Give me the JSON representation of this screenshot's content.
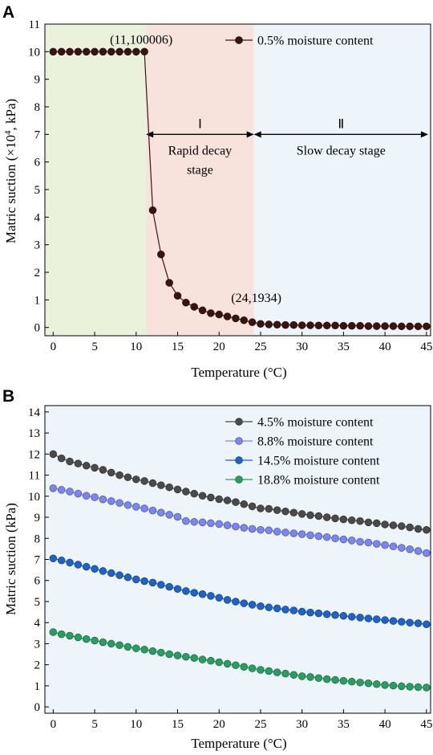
{
  "chart_data": [
    {
      "type": "line",
      "panel_label": "A",
      "xlabel": "Temperature (°C)",
      "ylabel_pre": "Matric suction (×10",
      "ylabel_sup": "4",
      "ylabel_post": ", kPa)",
      "xlim": [
        -1,
        45.5
      ],
      "ylim": [
        -0.3,
        11
      ],
      "xticks": [
        0,
        5,
        10,
        15,
        20,
        25,
        30,
        35,
        40,
        45
      ],
      "yticks": [
        0,
        1,
        2,
        3,
        4,
        5,
        6,
        7,
        8,
        9,
        10,
        11
      ],
      "grid": false,
      "legend_position": "top-right",
      "regions": [
        {
          "x0": -1,
          "x1": 11.2,
          "color": "#eaf2dc"
        },
        {
          "x0": 11.2,
          "x1": 24.2,
          "color": "#f7e3dc"
        },
        {
          "x0": 24.2,
          "x1": 45.5,
          "color": "#eef5fa"
        }
      ],
      "stage_arrows": [
        {
          "x0": 11.2,
          "x1": 24.2,
          "y": 7.0,
          "roman": "Ⅰ",
          "label_line1": "Rapid decay",
          "label_line2": "stage"
        },
        {
          "x0": 24.2,
          "x1": 45.2,
          "y": 7.0,
          "roman": "Ⅱ",
          "label_line1": "Slow decay stage",
          "label_line2": ""
        }
      ],
      "annotations": [
        {
          "text": "(11,100006)",
          "x": 11,
          "y": 10
        },
        {
          "text": "(24,1934)",
          "x": 24,
          "y": 0.19
        }
      ],
      "series": [
        {
          "name": "0.5% moisture content",
          "color": "#3a1410",
          "x": [
            0,
            1,
            2,
            3,
            4,
            5,
            6,
            7,
            8,
            9,
            10,
            11,
            12,
            13,
            14,
            15,
            16,
            17,
            18,
            19,
            20,
            21,
            22,
            23,
            24,
            25,
            26,
            27,
            28,
            29,
            30,
            31,
            32,
            33,
            34,
            35,
            36,
            37,
            38,
            39,
            40,
            41,
            42,
            43,
            44,
            45
          ],
          "y": [
            10,
            10,
            10,
            10,
            10,
            10,
            10,
            10,
            10,
            10,
            10,
            10.0006,
            4.25,
            2.65,
            1.62,
            1.15,
            0.9,
            0.75,
            0.62,
            0.52,
            0.47,
            0.4,
            0.33,
            0.26,
            0.19,
            0.13,
            0.11,
            0.1,
            0.09,
            0.09,
            0.08,
            0.08,
            0.07,
            0.07,
            0.07,
            0.06,
            0.06,
            0.06,
            0.05,
            0.05,
            0.05,
            0.05,
            0.04,
            0.04,
            0.04,
            0.04
          ]
        }
      ]
    },
    {
      "type": "line",
      "panel_label": "B",
      "xlabel": "Temperature (°C)",
      "ylabel": "Matric suction (kPa)",
      "xlim": [
        -1,
        45.5
      ],
      "ylim": [
        -0.3,
        14.3
      ],
      "xticks": [
        0,
        5,
        10,
        15,
        20,
        25,
        30,
        35,
        40,
        45
      ],
      "yticks": [
        0,
        1,
        2,
        3,
        4,
        5,
        6,
        7,
        8,
        9,
        10,
        11,
        12,
        13,
        14
      ],
      "grid": false,
      "legend_position": "top-right",
      "background": "#eef5fa",
      "series": [
        {
          "name": "4.5% moisture content",
          "color": "#4a4a4a",
          "x": [
            0,
            1,
            2,
            3,
            4,
            5,
            6,
            7,
            8,
            9,
            10,
            11,
            12,
            13,
            14,
            15,
            16,
            17,
            18,
            19,
            20,
            21,
            22,
            23,
            24,
            25,
            26,
            27,
            28,
            29,
            30,
            31,
            32,
            33,
            34,
            35,
            36,
            37,
            38,
            39,
            40,
            41,
            42,
            43,
            44,
            45
          ],
          "y": [
            12.0,
            11.8,
            11.65,
            11.55,
            11.45,
            11.35,
            11.25,
            11.12,
            11.0,
            10.9,
            10.8,
            10.72,
            10.62,
            10.52,
            10.42,
            10.32,
            10.22,
            10.12,
            10.02,
            9.94,
            9.86,
            9.8,
            9.72,
            9.62,
            9.52,
            9.42,
            9.4,
            9.34,
            9.28,
            9.22,
            9.16,
            9.1,
            9.06,
            9.0,
            8.95,
            8.9,
            8.86,
            8.82,
            8.76,
            8.72,
            8.66,
            8.62,
            8.58,
            8.52,
            8.45,
            8.4
          ]
        },
        {
          "name": "8.8% moisture content",
          "color": "#7a86f2",
          "x": [
            0,
            1,
            2,
            3,
            4,
            5,
            6,
            7,
            8,
            9,
            10,
            11,
            12,
            13,
            14,
            15,
            16,
            17,
            18,
            19,
            20,
            21,
            22,
            23,
            24,
            25,
            26,
            27,
            28,
            29,
            30,
            31,
            32,
            33,
            34,
            35,
            36,
            37,
            38,
            39,
            40,
            41,
            42,
            43,
            44,
            45
          ],
          "y": [
            10.38,
            10.3,
            10.22,
            10.12,
            10.02,
            9.95,
            9.85,
            9.77,
            9.68,
            9.58,
            9.5,
            9.42,
            9.32,
            9.22,
            9.12,
            9.02,
            8.82,
            8.78,
            8.76,
            8.72,
            8.68,
            8.62,
            8.56,
            8.5,
            8.45,
            8.4,
            8.38,
            8.32,
            8.28,
            8.24,
            8.2,
            8.15,
            8.1,
            8.06,
            8.0,
            7.95,
            7.9,
            7.84,
            7.8,
            7.74,
            7.68,
            7.62,
            7.55,
            7.48,
            7.4,
            7.3
          ]
        },
        {
          "name": "14.5% moisture content",
          "color": "#1f63c9",
          "x": [
            0,
            1,
            2,
            3,
            4,
            5,
            6,
            7,
            8,
            9,
            10,
            11,
            12,
            13,
            14,
            15,
            16,
            17,
            18,
            19,
            20,
            21,
            22,
            23,
            24,
            25,
            26,
            27,
            28,
            29,
            30,
            31,
            32,
            33,
            34,
            35,
            36,
            37,
            38,
            39,
            40,
            41,
            42,
            43,
            44,
            45
          ],
          "y": [
            7.05,
            6.95,
            6.85,
            6.75,
            6.65,
            6.55,
            6.45,
            6.35,
            6.25,
            6.15,
            6.05,
            5.97,
            5.9,
            5.8,
            5.7,
            5.6,
            5.5,
            5.42,
            5.35,
            5.27,
            5.18,
            5.08,
            5.0,
            4.92,
            4.85,
            4.78,
            4.72,
            4.68,
            4.62,
            4.58,
            4.52,
            4.48,
            4.44,
            4.4,
            4.36,
            4.32,
            4.28,
            4.24,
            4.2,
            4.16,
            4.12,
            4.08,
            4.04,
            4.0,
            3.97,
            3.92
          ]
        },
        {
          "name": "18.8% moisture content",
          "color": "#2a9e62",
          "x": [
            0,
            1,
            2,
            3,
            4,
            5,
            6,
            7,
            8,
            9,
            10,
            11,
            12,
            13,
            14,
            15,
            16,
            17,
            18,
            19,
            20,
            21,
            22,
            23,
            24,
            25,
            26,
            27,
            28,
            29,
            30,
            31,
            32,
            33,
            34,
            35,
            36,
            37,
            38,
            39,
            40,
            41,
            42,
            43,
            44,
            45
          ],
          "y": [
            3.55,
            3.45,
            3.38,
            3.3,
            3.22,
            3.15,
            3.07,
            3.0,
            2.93,
            2.85,
            2.78,
            2.72,
            2.65,
            2.58,
            2.5,
            2.44,
            2.38,
            2.32,
            2.25,
            2.19,
            2.12,
            2.05,
            1.98,
            1.9,
            1.83,
            1.76,
            1.7,
            1.64,
            1.58,
            1.52,
            1.46,
            1.42,
            1.37,
            1.32,
            1.28,
            1.24,
            1.2,
            1.16,
            1.12,
            1.08,
            1.04,
            1.01,
            0.98,
            0.96,
            0.94,
            0.92
          ]
        }
      ]
    }
  ]
}
